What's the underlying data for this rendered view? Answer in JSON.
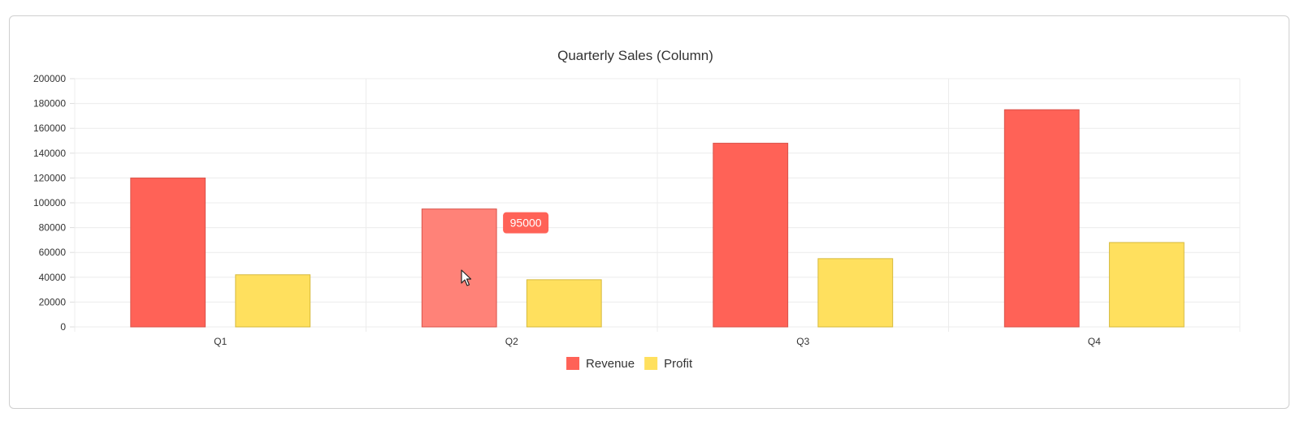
{
  "chart_data": {
    "type": "bar",
    "title": "Quarterly Sales (Column)",
    "categories": [
      "Q1",
      "Q2",
      "Q3",
      "Q4"
    ],
    "series": [
      {
        "name": "Revenue",
        "color": "#ff6257",
        "values": [
          120000,
          95000,
          148000,
          175000
        ]
      },
      {
        "name": "Profit",
        "color": "#ffe05e",
        "values": [
          42000,
          38000,
          55000,
          68000
        ]
      }
    ],
    "ylim": [
      0,
      200000
    ],
    "yticks": [
      "0",
      "20000",
      "40000",
      "60000",
      "80000",
      "100000",
      "120000",
      "140000",
      "160000",
      "180000",
      "200000"
    ],
    "grid": true,
    "legend_position": "bottom",
    "highlight": {
      "series": 0,
      "category": 1,
      "color": "#ff8278"
    },
    "tooltip": {
      "text": "95000",
      "color": "#ff6257"
    }
  }
}
